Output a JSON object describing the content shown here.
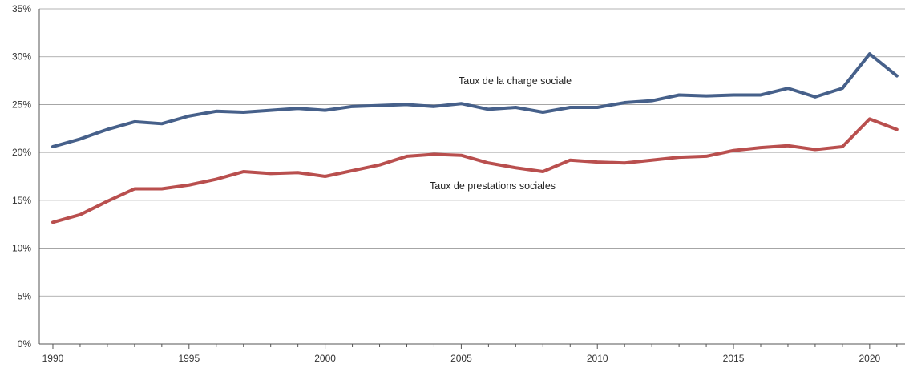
{
  "chart_data": {
    "type": "line",
    "x": [
      1990,
      1991,
      1992,
      1993,
      1994,
      1995,
      1996,
      1997,
      1998,
      1999,
      2000,
      2001,
      2002,
      2003,
      2004,
      2005,
      2006,
      2007,
      2008,
      2009,
      2010,
      2011,
      2012,
      2013,
      2014,
      2015,
      2016,
      2017,
      2018,
      2019,
      2020,
      2021
    ],
    "series": [
      {
        "name": "Taux de la charge sociale",
        "color": "#46608a",
        "values": [
          20.6,
          21.4,
          22.4,
          23.2,
          23.0,
          23.8,
          24.3,
          24.2,
          24.4,
          24.6,
          24.4,
          24.8,
          24.9,
          25.0,
          24.8,
          25.1,
          24.5,
          24.7,
          24.2,
          24.7,
          24.7,
          25.2,
          25.4,
          26.0,
          25.9,
          26.0,
          26.0,
          26.7,
          25.8,
          26.7,
          30.3,
          28.0
        ]
      },
      {
        "name": "Taux de prestations sociales",
        "color": "#b94f4e",
        "values": [
          12.7,
          13.5,
          14.9,
          16.2,
          16.2,
          16.6,
          17.2,
          18.0,
          17.8,
          17.9,
          17.5,
          18.1,
          18.7,
          19.6,
          19.8,
          19.7,
          18.9,
          18.4,
          18.0,
          19.2,
          19.0,
          18.9,
          19.2,
          19.5,
          19.6,
          20.2,
          20.5,
          20.7,
          20.3,
          20.6,
          23.5,
          22.4
        ]
      }
    ],
    "xticks": [
      1990,
      1995,
      2000,
      2005,
      2010,
      2015,
      2020
    ],
    "xtick_labels": [
      "1990",
      "1995",
      "2000",
      "2005",
      "2010",
      "2015",
      "2020"
    ],
    "yticks": [
      0,
      5,
      10,
      15,
      20,
      25,
      30,
      35
    ],
    "ytick_labels": [
      "0%",
      "5%",
      "10%",
      "15%",
      "20%",
      "25%",
      "30%",
      "35%"
    ],
    "xlim": [
      1989.5,
      2021.3
    ],
    "ylim": [
      0,
      35
    ],
    "grid": "horizontal",
    "legend": "inline-labels"
  }
}
